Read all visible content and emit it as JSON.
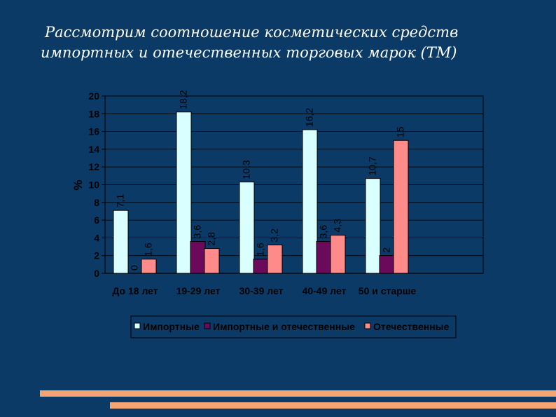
{
  "slide": {
    "title_line1": "Рассмотрим соотношение косметических средств",
    "title_line2": "импортных и отечественных торговых марок (ТМ)"
  },
  "chart_data": {
    "type": "bar",
    "categories": [
      "До 18 лет",
      "19-29 лет",
      "30-39 лет",
      "40-49 лет",
      "50 и старше"
    ],
    "ylabel": "%",
    "ylim": [
      0,
      20
    ],
    "yticks": [
      0,
      2,
      4,
      6,
      8,
      10,
      12,
      14,
      16,
      18,
      20
    ],
    "grid": true,
    "legend_position": "bottom",
    "series": [
      {
        "name": "Импортные",
        "values": [
          7.1,
          18.2,
          10.3,
          16.2,
          10.7
        ],
        "labels": [
          "7,1",
          "18,2",
          "10,3",
          "16,2",
          "10,7"
        ],
        "color": "#d9ffff"
      },
      {
        "name": "Импортные и отечественные",
        "values": [
          0,
          3.6,
          1.6,
          3.6,
          2
        ],
        "labels": [
          "0",
          "3,6",
          "1,6",
          "3,6",
          "2"
        ],
        "color": "#6b0a5a"
      },
      {
        "name": "Отечественные",
        "values": [
          1.6,
          2.8,
          3.2,
          4.3,
          15
        ],
        "labels": [
          "1,6",
          "2,8",
          "3,2",
          "4,3",
          "15"
        ],
        "color": "#ff8a8a"
      }
    ]
  },
  "colors": {
    "background": "#0b3a66",
    "plot_area": "#0b3a66",
    "accent_bars": "#f4a373"
  }
}
